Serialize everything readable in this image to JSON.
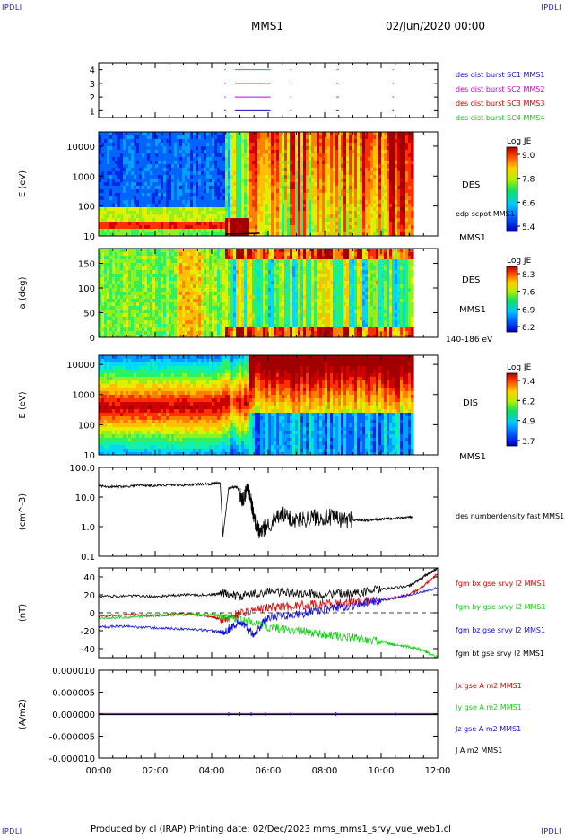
{
  "header": {
    "corner_tl": "IPDLI",
    "corner_tr": "IPDLI",
    "corner_bl": "IPDLI",
    "corner_br": "IPDLI",
    "mission": "MMS1",
    "date": "02/Jun/2020 00:00"
  },
  "footer": {
    "text": "Produced by cl (IRAP)   Printing date: 02/Dec/2023   mms_mms1_srvy_vue_web1.cl"
  },
  "colors": {
    "mms1": "#1010c8",
    "mms2": "#c800c8",
    "mms3": "#d00000",
    "mms4": "#10c810"
  },
  "chart_data": [
    {
      "type": "line",
      "panel": "burst-intervals",
      "ylim": [
        0.5,
        4.5
      ],
      "yticks": [
        "4",
        "3",
        "2",
        "1"
      ],
      "series": [
        {
          "name": "des dist burst SC1 MMS1",
          "color": "#1010c8"
        },
        {
          "name": "des dist burst SC2 MMS2",
          "color": "#c800c8"
        },
        {
          "name": "des dist burst SC3 MMS3",
          "color": "#d00000"
        },
        {
          "name": "des dist burst SC4 MMS4",
          "color": "#10c810"
        }
      ],
      "intervals_hours": [
        [
          4.82,
          6.08
        ],
        [
          0.1,
          0.14
        ],
        [
          4.45,
          4.5
        ],
        [
          6.78,
          6.82
        ],
        [
          8.42,
          8.5
        ],
        [
          10.4,
          10.44
        ]
      ]
    },
    {
      "type": "heatmap",
      "panel": "des-energy",
      "ylabel": "E (eV)",
      "ylog": true,
      "yticks": [
        "10000",
        "1000",
        "100",
        "10"
      ],
      "yvals": [
        10000,
        1000,
        100,
        10
      ],
      "ylim": [
        10,
        30000
      ],
      "right_labels": [
        "DES",
        "edp scpot MMS1",
        "MMS1"
      ],
      "colorbar": {
        "title": "Log JE",
        "ticks": [
          "9.0",
          "7.8",
          "6.6",
          "5.4"
        ]
      }
    },
    {
      "type": "heatmap",
      "panel": "des-pitch-angle",
      "ylabel": "a (deg)",
      "yticks": [
        "150",
        "100",
        "50",
        "0"
      ],
      "yvals": [
        150,
        100,
        50,
        0
      ],
      "ylim": [
        0,
        180
      ],
      "right_labels": [
        "DES",
        "MMS1",
        "140-186 eV"
      ],
      "colorbar": {
        "title": "Log JE",
        "ticks": [
          "8.3",
          "7.6",
          "6.9",
          "6.2"
        ]
      }
    },
    {
      "type": "heatmap",
      "panel": "dis-energy",
      "ylabel": "E (eV)",
      "ylog": true,
      "yticks": [
        "10000",
        "1000",
        "100",
        "10"
      ],
      "yvals": [
        10000,
        1000,
        100,
        10
      ],
      "ylim": [
        10,
        20000
      ],
      "right_labels": [
        "DIS",
        "MMS1"
      ],
      "colorbar": {
        "title": "Log JE",
        "ticks": [
          "7.4",
          "6.2",
          "4.9",
          "3.7"
        ]
      }
    },
    {
      "type": "line",
      "panel": "density",
      "ylabel": "(cm^-3)",
      "ylog": true,
      "yticks": [
        "100.0",
        "10.0",
        "1.0",
        "0.1"
      ],
      "yvals": [
        100,
        10,
        1,
        0.1
      ],
      "ylim": [
        0.1,
        100
      ],
      "series": [
        {
          "name": "des numberdensity fast MMS1",
          "color": "#000000",
          "x": [
            0,
            0.5,
            1,
            1.5,
            2,
            2.5,
            3,
            3.5,
            4,
            4.3,
            4.4,
            4.6,
            4.9,
            5.1,
            5.3,
            5.5,
            5.7,
            6.0,
            6.5,
            7.0,
            7.5,
            8.0,
            8.5,
            9.0,
            9.5,
            10.0,
            10.5,
            11.0,
            11.1
          ],
          "y": [
            24,
            22,
            23,
            25,
            24,
            26,
            25,
            27,
            28,
            30,
            0.5,
            20,
            22,
            8,
            25,
            2,
            0.6,
            1.2,
            2.5,
            1.6,
            2.0,
            2.2,
            1.8,
            1.7,
            1.6,
            1.8,
            1.9,
            2.1,
            2.2
          ]
        }
      ]
    },
    {
      "type": "line",
      "panel": "magnetic-field",
      "ylabel": "(nT)",
      "yticks": [
        "40",
        "20",
        "0",
        "-20",
        "-40"
      ],
      "yvals": [
        40,
        20,
        0,
        -20,
        -40
      ],
      "ylim": [
        -50,
        50
      ],
      "series": [
        {
          "name": "fgm bx gse srvy l2 MMS1",
          "color": "#e00000",
          "x": [
            0,
            1,
            2,
            3,
            4,
            4.4,
            5,
            6,
            7,
            8,
            9,
            10,
            11,
            11.5,
            12
          ],
          "y": [
            -4,
            -2,
            -3,
            -1,
            -4,
            -8,
            0,
            6,
            8,
            10,
            12,
            14,
            20,
            30,
            44
          ]
        },
        {
          "name": "fgm by gse srvy l2 MMS1",
          "color": "#10d010",
          "x": [
            0,
            1,
            2,
            3,
            4,
            4.4,
            5,
            6,
            7,
            8,
            9,
            10,
            10.5,
            11,
            11.5,
            12
          ],
          "y": [
            -6,
            -5,
            -3,
            -2,
            -1,
            -5,
            -8,
            -16,
            -20,
            -24,
            -28,
            -32,
            -36,
            -38,
            -42,
            -50
          ]
        },
        {
          "name": "fgm bz gse srvy l2 MMS1",
          "color": "#1010e0",
          "x": [
            0,
            1,
            2,
            3,
            4,
            4.4,
            5,
            5.5,
            6,
            7,
            8,
            9,
            10,
            11,
            12
          ],
          "y": [
            -16,
            -15,
            -17,
            -18,
            -20,
            -22,
            -10,
            -24,
            -4,
            -2,
            4,
            8,
            14,
            20,
            28
          ]
        },
        {
          "name": "fgm bt gse srvy l2 MMS1",
          "color": "#000000",
          "x": [
            0,
            1,
            2,
            3,
            4,
            4.4,
            5,
            6,
            7,
            8,
            9,
            10,
            11,
            11.5,
            12
          ],
          "y": [
            18,
            19,
            18,
            20,
            20,
            22,
            18,
            24,
            22,
            20,
            22,
            26,
            30,
            40,
            50
          ]
        }
      ]
    },
    {
      "type": "line",
      "panel": "current-density",
      "ylabel": "(A/m2)",
      "yticks": [
        "0.000010",
        "0.000005",
        "0.000000",
        "-0.000005",
        "-0.000010"
      ],
      "yvals": [
        1e-05,
        5e-06,
        0,
        -5e-06,
        -1e-05
      ],
      "ylim": [
        -1e-05,
        1e-05
      ],
      "series": [
        {
          "name": "Jx gse A m2 MMS1",
          "color": "#e00000"
        },
        {
          "name": "Jy gse A m2 MMS1",
          "color": "#10d010"
        },
        {
          "name": "Jz gse A m2 MMS1",
          "color": "#1010e0"
        },
        {
          "name": "J A m2 MMS1",
          "color": "#000000"
        }
      ]
    }
  ],
  "time_axis": {
    "xlim": [
      0,
      12
    ],
    "ticks": [
      "00:00",
      "02:00",
      "04:00",
      "06:00",
      "08:00",
      "10:00",
      "12:00"
    ]
  }
}
